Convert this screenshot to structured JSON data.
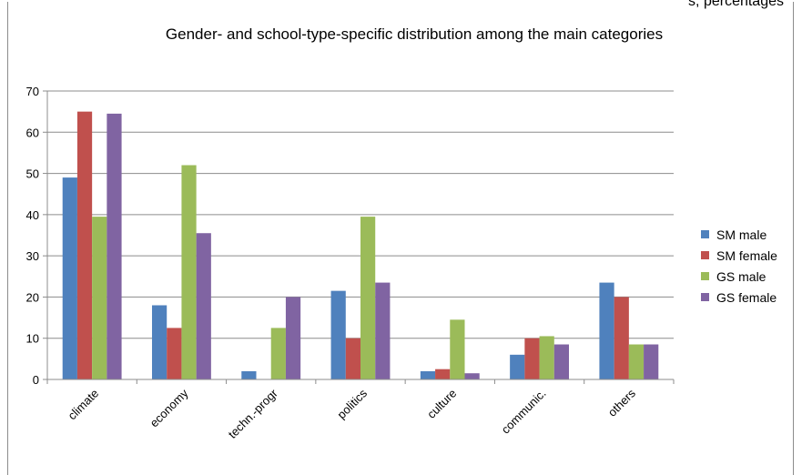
{
  "header": {
    "cut_caption": "s, percentages"
  },
  "chart_data": {
    "type": "bar",
    "title": "Gender- and school-type-specific distribution among the main categories",
    "categories": [
      "climate",
      "economy",
      "techn.-progr",
      "politics",
      "culture",
      "communic.",
      "others"
    ],
    "series": [
      {
        "name": "SM male",
        "color": "#4f81bd",
        "values": [
          49,
          18,
          2,
          21.5,
          2,
          6,
          23.5
        ]
      },
      {
        "name": "SM female",
        "color": "#c0504d",
        "values": [
          65,
          12.5,
          0,
          10,
          2.5,
          10,
          20
        ]
      },
      {
        "name": "GS male",
        "color": "#9bbb59",
        "values": [
          39.5,
          52,
          12.5,
          39.5,
          14.5,
          10.5,
          8.5
        ]
      },
      {
        "name": "GS female",
        "color": "#8064a2",
        "values": [
          64.5,
          35.5,
          20,
          23.5,
          1.5,
          8.5,
          8.5
        ]
      }
    ],
    "ylim": [
      0,
      70
    ],
    "yticks": [
      0,
      10,
      20,
      30,
      40,
      50,
      60,
      70
    ],
    "grid": true,
    "legend": "right"
  }
}
